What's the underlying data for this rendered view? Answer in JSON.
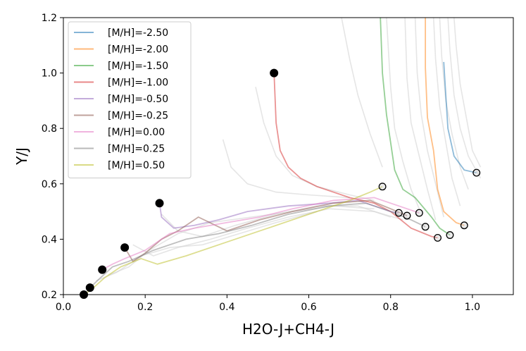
{
  "chart_data": {
    "type": "line",
    "title": "",
    "xlabel": "H2O-J+CH4-J",
    "ylabel": "Y/J",
    "xlim": [
      0.0,
      1.1
    ],
    "ylim": [
      0.2,
      1.2
    ],
    "xticks": [
      "0.0",
      "0.2",
      "0.4",
      "0.6",
      "0.8",
      "1.0"
    ],
    "xtick_values": [
      0.0,
      0.2,
      0.4,
      0.6,
      0.8,
      1.0
    ],
    "yticks": [
      "0.2",
      "0.4",
      "0.6",
      "0.8",
      "1.0",
      "1.2"
    ],
    "ytick_values": [
      0.2,
      0.4,
      0.6,
      0.8,
      1.0,
      1.2
    ],
    "grid": false,
    "legend_position": "top-left",
    "series": [
      {
        "name": "[M/H]=-2.50",
        "color": "#1f77b4",
        "x": [
          0.93,
          0.935,
          0.94,
          0.955,
          0.98,
          1.01
        ],
        "y": [
          1.04,
          0.92,
          0.8,
          0.7,
          0.65,
          0.64
        ]
      },
      {
        "name": "[M/H]=-2.00",
        "color": "#ff7f0e",
        "x": [
          0.885,
          0.885,
          0.89,
          0.905,
          0.915,
          0.93,
          0.96,
          0.98
        ],
        "y": [
          1.2,
          1.02,
          0.84,
          0.72,
          0.58,
          0.5,
          0.46,
          0.45
        ]
      },
      {
        "name": "[M/H]=-1.50",
        "color": "#2ca02c",
        "x": [
          0.775,
          0.78,
          0.79,
          0.8,
          0.81,
          0.83,
          0.86,
          0.9,
          0.92,
          0.945
        ],
        "y": [
          1.2,
          1.0,
          0.85,
          0.75,
          0.65,
          0.58,
          0.55,
          0.48,
          0.44,
          0.415
        ]
      },
      {
        "name": "[M/H]=-1.00",
        "color": "#d62728",
        "x": [
          0.515,
          0.52,
          0.53,
          0.55,
          0.58,
          0.62,
          0.7,
          0.76,
          0.8,
          0.85,
          0.9,
          0.915
        ],
        "y": [
          1.0,
          0.82,
          0.72,
          0.66,
          0.62,
          0.59,
          0.55,
          0.53,
          0.5,
          0.44,
          0.41,
          0.405
        ]
      },
      {
        "name": "[M/H]=-0.50",
        "color": "#9467bd",
        "x": [
          0.235,
          0.24,
          0.27,
          0.32,
          0.38,
          0.45,
          0.55,
          0.65,
          0.72,
          0.76,
          0.8,
          0.82
        ],
        "y": [
          0.53,
          0.48,
          0.44,
          0.45,
          0.47,
          0.5,
          0.52,
          0.53,
          0.54,
          0.52,
          0.5,
          0.495
        ]
      },
      {
        "name": "[M/H]=-0.25",
        "color": "#8c564b",
        "x": [
          0.15,
          0.17,
          0.2,
          0.24,
          0.28,
          0.33,
          0.4,
          0.48,
          0.56,
          0.66,
          0.75,
          0.8,
          0.84
        ],
        "y": [
          0.37,
          0.32,
          0.35,
          0.4,
          0.43,
          0.48,
          0.43,
          0.47,
          0.5,
          0.53,
          0.54,
          0.51,
          0.485
        ]
      },
      {
        "name": "[M/H]=0.00",
        "color": "#e377c2",
        "x": [
          0.095,
          0.12,
          0.15,
          0.2,
          0.26,
          0.32,
          0.4,
          0.48,
          0.56,
          0.66,
          0.76,
          0.82,
          0.87
        ],
        "y": [
          0.29,
          0.31,
          0.33,
          0.36,
          0.42,
          0.44,
          0.46,
          0.48,
          0.51,
          0.54,
          0.55,
          0.52,
          0.495
        ]
      },
      {
        "name": "[M/H]=0.25",
        "color": "#7f7f7f",
        "x": [
          0.065,
          0.09,
          0.12,
          0.16,
          0.22,
          0.3,
          0.38,
          0.46,
          0.55,
          0.65,
          0.74,
          0.8,
          0.85,
          0.885
        ],
        "y": [
          0.225,
          0.26,
          0.3,
          0.32,
          0.36,
          0.4,
          0.42,
          0.45,
          0.49,
          0.52,
          0.53,
          0.5,
          0.47,
          0.445
        ]
      },
      {
        "name": "[M/H]=0.50",
        "color": "#bcbd22",
        "x": [
          0.05,
          0.07,
          0.1,
          0.14,
          0.19,
          0.23,
          0.3,
          0.4,
          0.5,
          0.6,
          0.7,
          0.75,
          0.78
        ],
        "y": [
          0.2,
          0.22,
          0.26,
          0.3,
          0.33,
          0.31,
          0.34,
          0.39,
          0.44,
          0.49,
          0.54,
          0.57,
          0.59
        ]
      }
    ],
    "background_tracks": [
      {
        "x": [
          0.79,
          0.8,
          0.81,
          0.83,
          0.85,
          0.87
        ],
        "y": [
          1.2,
          0.95,
          0.8,
          0.68,
          0.58,
          0.51
        ]
      },
      {
        "x": [
          0.835,
          0.84,
          0.85,
          0.87,
          0.89,
          0.91
        ],
        "y": [
          1.2,
          0.98,
          0.82,
          0.7,
          0.58,
          0.47
        ]
      },
      {
        "x": [
          0.86,
          0.865,
          0.875,
          0.89,
          0.91,
          0.93
        ],
        "y": [
          1.2,
          1.0,
          0.85,
          0.72,
          0.6,
          0.48
        ]
      },
      {
        "x": [
          0.905,
          0.91,
          0.92,
          0.935,
          0.95,
          0.97
        ],
        "y": [
          1.2,
          1.05,
          0.88,
          0.75,
          0.62,
          0.52
        ]
      },
      {
        "x": [
          0.92,
          0.925,
          0.935,
          0.95,
          0.97,
          0.99
        ],
        "y": [
          1.2,
          1.06,
          0.9,
          0.78,
          0.66,
          0.58
        ]
      },
      {
        "x": [
          0.94,
          0.945,
          0.955,
          0.97,
          0.99,
          1.02
        ],
        "y": [
          1.2,
          1.08,
          0.92,
          0.8,
          0.7,
          0.62
        ]
      },
      {
        "x": [
          0.955,
          0.96,
          0.97,
          0.985,
          1.0,
          1.02
        ],
        "y": [
          1.2,
          1.1,
          0.96,
          0.84,
          0.72,
          0.66
        ]
      },
      {
        "x": [
          0.68,
          0.7,
          0.72,
          0.75,
          0.78
        ],
        "y": [
          1.2,
          1.05,
          0.92,
          0.78,
          0.66
        ]
      },
      {
        "x": [
          0.47,
          0.49,
          0.52,
          0.56,
          0.62,
          0.7,
          0.76
        ],
        "y": [
          0.95,
          0.82,
          0.7,
          0.63,
          0.59,
          0.56,
          0.54
        ]
      },
      {
        "x": [
          0.39,
          0.41,
          0.45,
          0.52,
          0.6,
          0.7
        ],
        "y": [
          0.76,
          0.66,
          0.6,
          0.57,
          0.56,
          0.55
        ]
      },
      {
        "x": [
          0.24,
          0.28,
          0.34,
          0.42,
          0.52,
          0.62,
          0.72,
          0.8
        ],
        "y": [
          0.49,
          0.43,
          0.41,
          0.45,
          0.49,
          0.52,
          0.52,
          0.48
        ]
      },
      {
        "x": [
          0.17,
          0.22,
          0.28,
          0.36,
          0.45,
          0.55,
          0.65,
          0.76,
          0.83
        ],
        "y": [
          0.38,
          0.34,
          0.37,
          0.4,
          0.44,
          0.48,
          0.51,
          0.5,
          0.47
        ]
      },
      {
        "x": [
          0.11,
          0.16,
          0.21,
          0.28,
          0.36,
          0.46,
          0.56,
          0.66,
          0.76
        ],
        "y": [
          0.27,
          0.3,
          0.36,
          0.42,
          0.46,
          0.48,
          0.5,
          0.52,
          0.51
        ]
      },
      {
        "x": [
          0.08,
          0.13,
          0.19,
          0.26,
          0.34,
          0.43,
          0.52,
          0.62
        ],
        "y": [
          0.25,
          0.28,
          0.34,
          0.37,
          0.38,
          0.42,
          0.46,
          0.5
        ]
      }
    ],
    "start_markers": [
      {
        "x": 0.515,
        "y": 1.0
      },
      {
        "x": 0.235,
        "y": 0.53
      },
      {
        "x": 0.15,
        "y": 0.37
      },
      {
        "x": 0.095,
        "y": 0.29
      },
      {
        "x": 0.065,
        "y": 0.225
      },
      {
        "x": 0.05,
        "y": 0.2
      }
    ],
    "end_markers": [
      {
        "x": 1.01,
        "y": 0.64
      },
      {
        "x": 0.78,
        "y": 0.59
      },
      {
        "x": 0.82,
        "y": 0.495
      },
      {
        "x": 0.84,
        "y": 0.485
      },
      {
        "x": 0.87,
        "y": 0.495
      },
      {
        "x": 0.885,
        "y": 0.445
      },
      {
        "x": 0.915,
        "y": 0.405
      },
      {
        "x": 0.945,
        "y": 0.415
      },
      {
        "x": 0.98,
        "y": 0.45
      }
    ]
  }
}
